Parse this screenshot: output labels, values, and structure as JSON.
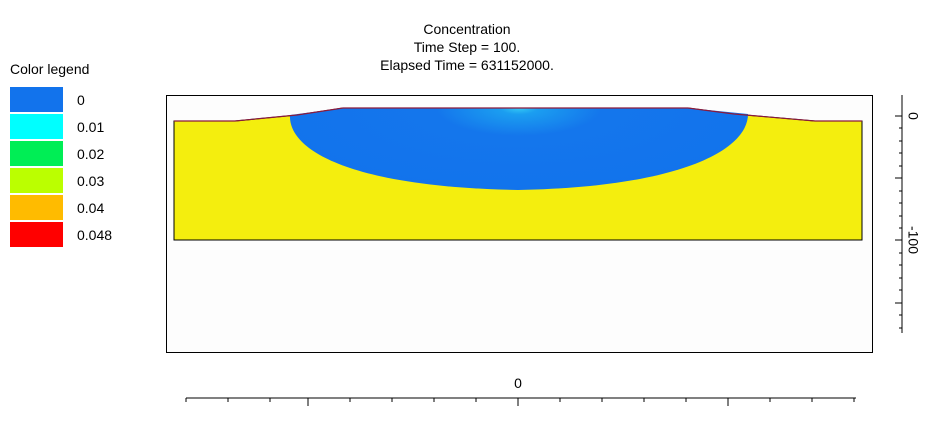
{
  "plot": {
    "title": "Concentration",
    "time_step": "Time Step = 100.",
    "elapsed_time": "Elapsed Time = 631152000."
  },
  "legend": {
    "title": "Color legend",
    "entries": [
      {
        "label": "0",
        "color": "#1273ec"
      },
      {
        "label": "0.01",
        "color": "#00ffff"
      },
      {
        "label": "0.02",
        "color": "#00ee55"
      },
      {
        "label": "0.03",
        "color": "#bbff00"
      },
      {
        "label": "0.04",
        "color": "#ffbb00"
      },
      {
        "label": "0.048",
        "color": "#ff0000"
      }
    ]
  },
  "axes": {
    "x_tick_label": "0",
    "y_tick_labels": [
      "0",
      "-100"
    ]
  }
}
